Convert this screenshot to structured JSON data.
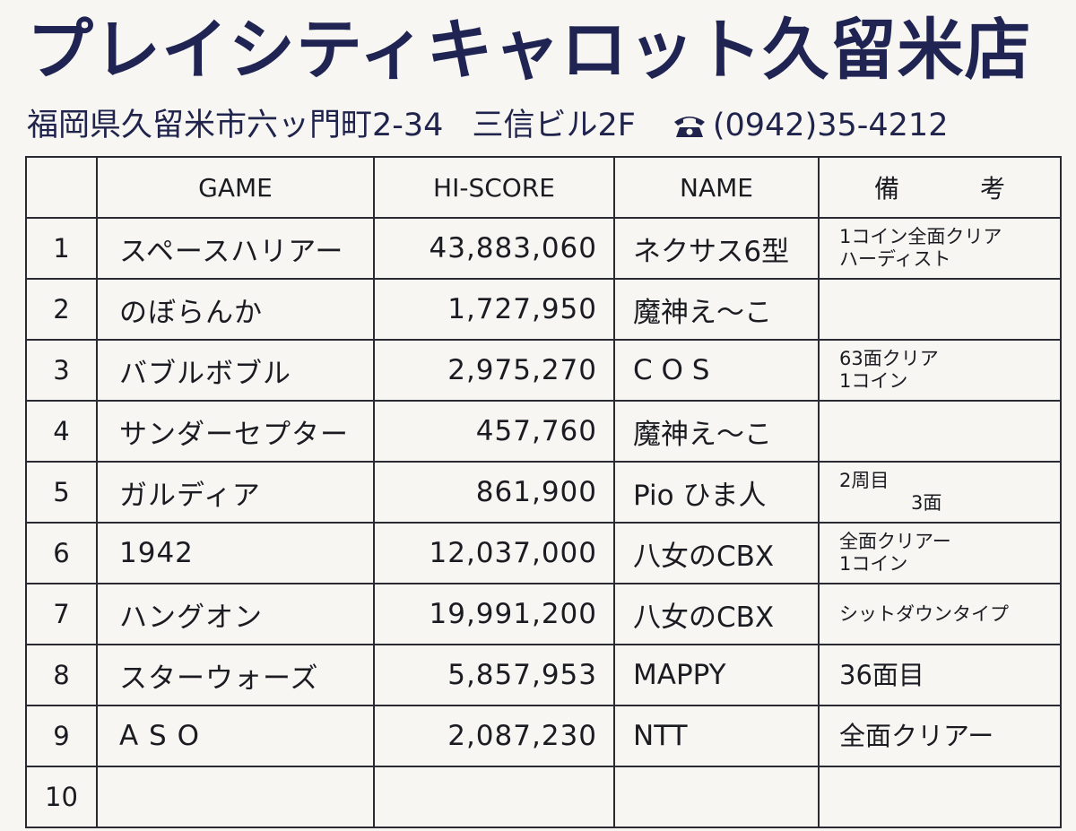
{
  "header": {
    "store_name": "プレイシティキャロット久留米店",
    "address": "福岡県久留米市六ッ門町2-34",
    "building": "三信ビル2F",
    "phone": "(0942)35-4212",
    "phone_icon": "telephone-icon"
  },
  "table": {
    "headers": {
      "rank": "",
      "game": "GAME",
      "score": "HI-SCORE",
      "name": "NAME",
      "notes_1": "備",
      "notes_2": "考"
    },
    "rows": [
      {
        "rank": "1",
        "game": "スペースハリアー",
        "score": "43,883,060",
        "name": "ネクサス6型",
        "notes": [
          "1コイン全面クリア",
          "ハーディスト"
        ]
      },
      {
        "rank": "2",
        "game": "のぼらんか",
        "score": "1,727,950",
        "name": "魔神え～こ",
        "notes": [
          "",
          ""
        ]
      },
      {
        "rank": "3",
        "game": "バブルボブル",
        "score": "2,975,270",
        "name": "C O S",
        "notes": [
          "63面クリア",
          "1コイン"
        ]
      },
      {
        "rank": "4",
        "game": "サンダーセプター",
        "score": "457,760",
        "name": "魔神え～こ",
        "notes": [
          "",
          ""
        ]
      },
      {
        "rank": "5",
        "game": "ガルディア",
        "score": "861,900",
        "name": "Pio ひま人",
        "notes": [
          "2周目",
          "3面"
        ]
      },
      {
        "rank": "6",
        "game": "1942",
        "score": "12,037,000",
        "name": "八女のCBX",
        "notes": [
          "全面クリアー",
          "1コイン"
        ]
      },
      {
        "rank": "7",
        "game": "ハングオン",
        "score": "19,991,200",
        "name": "八女のCBX",
        "notes": [
          "シットダウンタイプ",
          ""
        ]
      },
      {
        "rank": "8",
        "game": "スターウォーズ",
        "score": "5,857,953",
        "name": "MAPPY",
        "notes": [
          "36面目",
          ""
        ]
      },
      {
        "rank": "9",
        "game": "A S O",
        "score": "2,087,230",
        "name": "NTT",
        "notes": [
          "全面クリアー",
          ""
        ]
      },
      {
        "rank": "10",
        "game": "",
        "score": "",
        "name": "",
        "notes": [
          "",
          ""
        ]
      }
    ]
  }
}
